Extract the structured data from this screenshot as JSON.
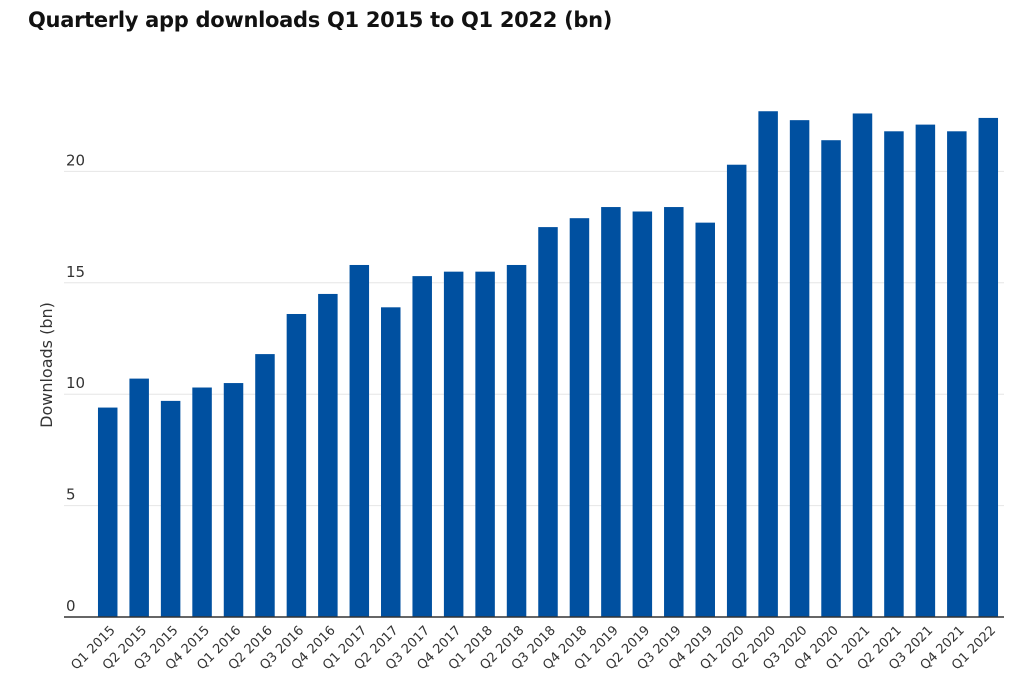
{
  "chart_data": {
    "type": "bar",
    "title": "Quarterly app downloads Q1 2015 to Q1 2022 (bn)",
    "xlabel": "",
    "ylabel": "Downloads (bn)",
    "ylim": [
      0,
      25
    ],
    "yticks": [
      0,
      5,
      10,
      15,
      20
    ],
    "grid": true,
    "bar_color": "#0050a0",
    "categories": [
      "Q1 2015",
      "Q2 2015",
      "Q3 2015",
      "Q4 2015",
      "Q1 2016",
      "Q2 2016",
      "Q3 2016",
      "Q4 2016",
      "Q1 2017",
      "Q2 2017",
      "Q3 2017",
      "Q4 2017",
      "Q1 2018",
      "Q2 2018",
      "Q3 2018",
      "Q4 2018",
      "Q1 2019",
      "Q2 2019",
      "Q3 2019",
      "Q4 2019",
      "Q1 2020",
      "Q2 2020",
      "Q3 2020",
      "Q4 2020",
      "Q1 2021",
      "Q2 2021",
      "Q3 2021",
      "Q4 2021",
      "Q1 2022"
    ],
    "values": [
      9.4,
      10.7,
      9.7,
      10.3,
      10.5,
      11.8,
      13.6,
      14.5,
      15.8,
      13.9,
      15.3,
      15.5,
      15.5,
      15.8,
      17.5,
      17.9,
      18.4,
      18.2,
      18.4,
      17.7,
      20.3,
      22.7,
      22.3,
      21.4,
      22.6,
      21.8,
      22.1,
      21.8,
      22.4
    ]
  }
}
